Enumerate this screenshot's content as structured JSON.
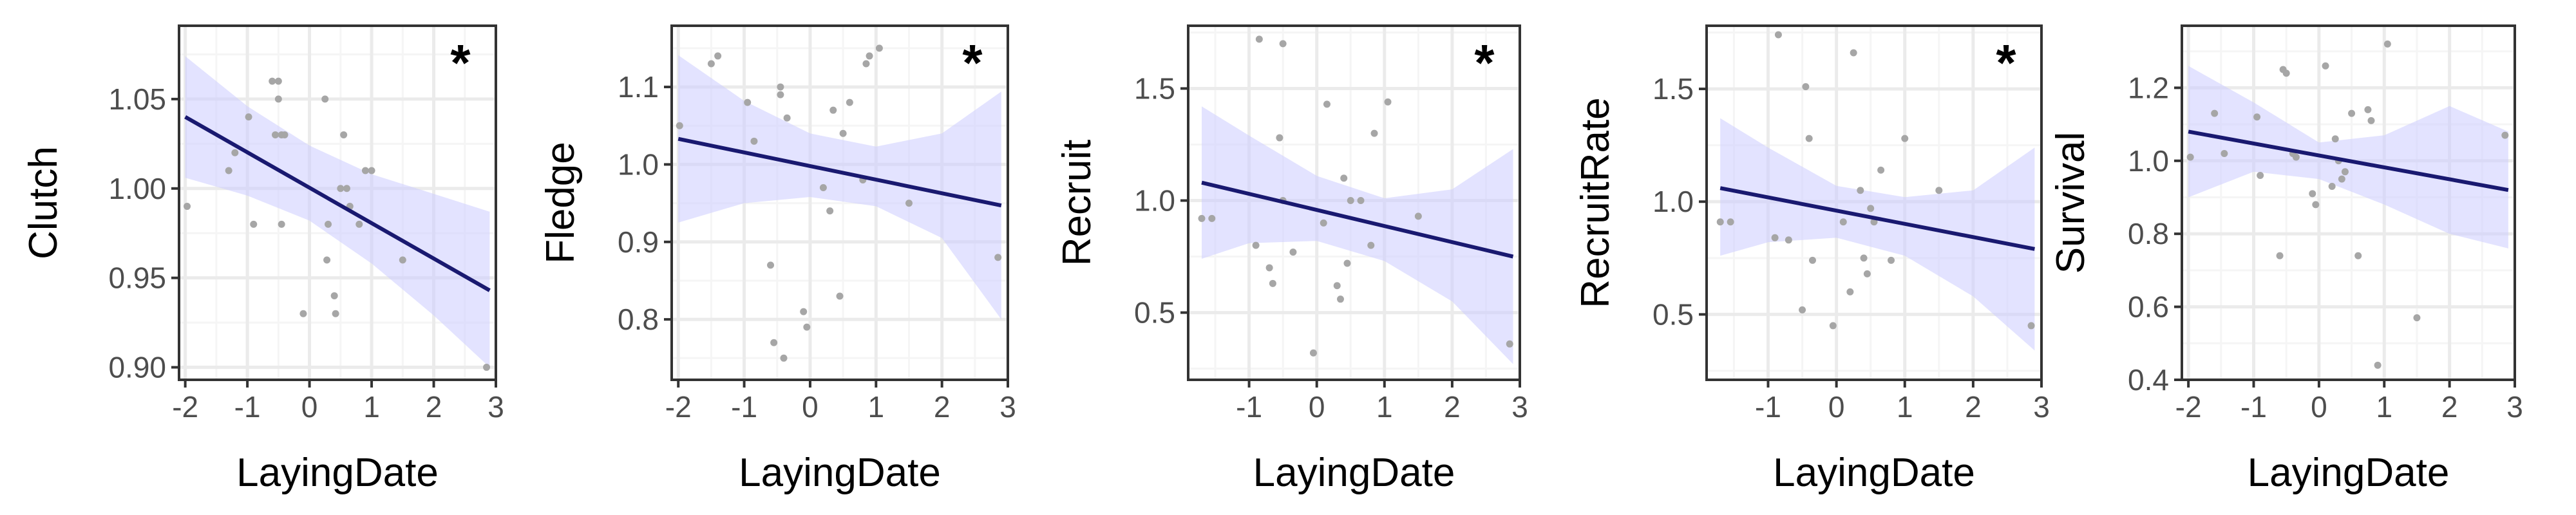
{
  "colors": {
    "line": "#191970",
    "ribbon": "#ccccff",
    "points": "#a6a6a6",
    "grid_major": "#ebebeb",
    "grid_minor": "#f5f5f5",
    "frame": "#333333"
  },
  "chart_data": [
    {
      "type": "scatter",
      "xlabel": "LayingDate",
      "ylabel": "Clutch",
      "significance": "*",
      "xlim": [
        -2.1,
        3.0
      ],
      "ylim": [
        0.893,
        1.091
      ],
      "xticks": [
        -2,
        -1,
        0,
        1,
        2,
        3
      ],
      "xtick_labels": [
        "-2",
        "-1",
        "0",
        "1",
        "2",
        "3"
      ],
      "yticks": [
        0.9,
        0.95,
        1.0,
        1.05
      ],
      "ytick_labels": [
        "0.90",
        "0.95",
        "1.00",
        "1.05"
      ],
      "points": [
        [
          -1.97,
          0.99
        ],
        [
          -1.3,
          1.01
        ],
        [
          -1.2,
          1.02
        ],
        [
          -0.98,
          1.04
        ],
        [
          -0.9,
          0.98
        ],
        [
          -0.6,
          1.06
        ],
        [
          -0.5,
          1.06
        ],
        [
          -0.5,
          1.05
        ],
        [
          -0.55,
          1.03
        ],
        [
          -0.45,
          1.03
        ],
        [
          -0.4,
          1.03
        ],
        [
          -0.45,
          0.98
        ],
        [
          -0.1,
          0.93
        ],
        [
          0.25,
          1.05
        ],
        [
          0.28,
          0.96
        ],
        [
          0.3,
          0.98
        ],
        [
          0.4,
          0.94
        ],
        [
          0.42,
          0.93
        ],
        [
          0.5,
          1.0
        ],
        [
          0.55,
          1.03
        ],
        [
          0.6,
          1.0
        ],
        [
          0.65,
          0.99
        ],
        [
          0.8,
          0.98
        ],
        [
          0.9,
          1.01
        ],
        [
          1.0,
          1.01
        ],
        [
          1.5,
          0.96
        ],
        [
          2.85,
          0.9
        ]
      ],
      "fit": {
        "x": [
          -2.0,
          2.9
        ],
        "y": [
          1.04,
          0.943
        ]
      },
      "ribbon": {
        "x": [
          -2.0,
          -1.0,
          0.0,
          1.0,
          2.0,
          2.9
        ],
        "lower": [
          1.006,
          0.996,
          0.982,
          0.958,
          0.929,
          0.9
        ],
        "upper": [
          1.074,
          1.046,
          1.024,
          1.008,
          0.997,
          0.987
        ]
      }
    },
    {
      "type": "scatter",
      "xlabel": "LayingDate",
      "ylabel": "Fledge",
      "significance": "*",
      "xlim": [
        -2.1,
        3.0
      ],
      "ylim": [
        0.722,
        1.179
      ],
      "xticks": [
        -2,
        -1,
        0,
        1,
        2,
        3
      ],
      "xtick_labels": [
        "-2",
        "-1",
        "0",
        "1",
        "2",
        "3"
      ],
      "yticks": [
        0.8,
        0.9,
        1.0,
        1.1
      ],
      "ytick_labels": [
        "0.8",
        "0.9",
        "1.0",
        "1.1"
      ],
      "points": [
        [
          -1.98,
          1.05
        ],
        [
          -1.5,
          1.13
        ],
        [
          -1.4,
          1.14
        ],
        [
          -0.95,
          1.08
        ],
        [
          -0.85,
          1.03
        ],
        [
          -0.6,
          0.87
        ],
        [
          -0.55,
          0.77
        ],
        [
          -0.45,
          1.09
        ],
        [
          -0.45,
          1.1
        ],
        [
          -0.4,
          0.75
        ],
        [
          -0.35,
          1.06
        ],
        [
          -0.1,
          0.81
        ],
        [
          -0.05,
          0.79
        ],
        [
          0.2,
          0.97
        ],
        [
          0.3,
          0.94
        ],
        [
          0.35,
          1.07
        ],
        [
          0.45,
          0.83
        ],
        [
          0.5,
          1.04
        ],
        [
          0.6,
          1.08
        ],
        [
          0.8,
          0.98
        ],
        [
          0.85,
          1.13
        ],
        [
          0.9,
          1.14
        ],
        [
          1.05,
          1.15
        ],
        [
          1.5,
          0.95
        ],
        [
          2.85,
          0.88
        ]
      ],
      "fit": {
        "x": [
          -2.0,
          2.9
        ],
        "y": [
          1.033,
          0.947
        ]
      },
      "ribbon": {
        "x": [
          -2.0,
          -1.0,
          0.0,
          1.0,
          2.0,
          2.9
        ],
        "lower": [
          0.925,
          0.95,
          0.958,
          0.946,
          0.905,
          0.8
        ],
        "upper": [
          1.141,
          1.082,
          1.04,
          1.023,
          1.04,
          1.094
        ]
      }
    },
    {
      "type": "scatter",
      "xlabel": "LayingDate",
      "ylabel": "Recruit",
      "significance": "*",
      "xlim": [
        -1.9,
        3.0
      ],
      "ylim": [
        0.2,
        1.78
      ],
      "xticks": [
        -1,
        0,
        1,
        2,
        3
      ],
      "xtick_labels": [
        "-1",
        "0",
        "1",
        "2",
        "3"
      ],
      "yticks": [
        0.5,
        1.0,
        1.5
      ],
      "ytick_labels": [
        "0.5",
        "1.0",
        "1.5"
      ],
      "points": [
        [
          -1.7,
          0.92
        ],
        [
          -1.55,
          0.92
        ],
        [
          -0.85,
          1.72
        ],
        [
          -0.9,
          0.8
        ],
        [
          -0.7,
          0.7
        ],
        [
          -0.65,
          0.63
        ],
        [
          -0.5,
          1.7
        ],
        [
          -0.55,
          1.28
        ],
        [
          -0.5,
          1.0
        ],
        [
          -0.35,
          0.77
        ],
        [
          -0.05,
          0.32
        ],
        [
          0.1,
          0.9
        ],
        [
          0.15,
          1.43
        ],
        [
          0.3,
          0.62
        ],
        [
          0.35,
          0.56
        ],
        [
          0.4,
          1.1
        ],
        [
          0.45,
          0.72
        ],
        [
          0.5,
          1.0
        ],
        [
          0.65,
          1.0
        ],
        [
          0.8,
          0.8
        ],
        [
          0.85,
          1.3
        ],
        [
          1.05,
          1.44
        ],
        [
          1.5,
          0.93
        ],
        [
          2.85,
          0.36
        ]
      ],
      "fit": {
        "x": [
          -1.7,
          2.9
        ],
        "y": [
          1.08,
          0.75
        ]
      },
      "ribbon": {
        "x": [
          -1.7,
          -1.0,
          0.0,
          1.0,
          2.0,
          2.9
        ],
        "lower": [
          0.74,
          0.81,
          0.82,
          0.73,
          0.55,
          0.27
        ],
        "upper": [
          1.42,
          1.29,
          1.11,
          1.01,
          1.05,
          1.23
        ]
      }
    },
    {
      "type": "scatter",
      "xlabel": "LayingDate",
      "ylabel": "RecruitRate",
      "significance": "*",
      "xlim": [
        -1.9,
        3.0
      ],
      "ylim": [
        0.21,
        1.78
      ],
      "xticks": [
        -1,
        0,
        1,
        2,
        3
      ],
      "xtick_labels": [
        "-1",
        "0",
        "1",
        "2",
        "3"
      ],
      "yticks": [
        0.5,
        1.0,
        1.5
      ],
      "ytick_labels": [
        "0.5",
        "1.0",
        "1.5"
      ],
      "points": [
        [
          -1.7,
          0.91
        ],
        [
          -1.55,
          0.91
        ],
        [
          -0.85,
          1.74
        ],
        [
          -0.9,
          0.84
        ],
        [
          -0.7,
          0.83
        ],
        [
          -0.5,
          0.52
        ],
        [
          -0.45,
          1.51
        ],
        [
          -0.4,
          1.28
        ],
        [
          -0.35,
          0.74
        ],
        [
          -0.05,
          0.45
        ],
        [
          0.1,
          0.91
        ],
        [
          0.2,
          0.6
        ],
        [
          0.25,
          1.66
        ],
        [
          0.35,
          1.05
        ],
        [
          0.4,
          0.75
        ],
        [
          0.45,
          0.68
        ],
        [
          0.5,
          0.97
        ],
        [
          0.55,
          0.91
        ],
        [
          0.65,
          1.14
        ],
        [
          0.8,
          0.74
        ],
        [
          1.0,
          1.28
        ],
        [
          1.5,
          1.05
        ],
        [
          2.85,
          0.45
        ]
      ],
      "fit": {
        "x": [
          -1.7,
          2.9
        ],
        "y": [
          1.06,
          0.79
        ]
      },
      "ribbon": {
        "x": [
          -1.7,
          -1.0,
          0.0,
          1.0,
          2.0,
          2.9
        ],
        "lower": [
          0.76,
          0.82,
          0.84,
          0.76,
          0.58,
          0.34
        ],
        "upper": [
          1.37,
          1.24,
          1.07,
          1.02,
          1.05,
          1.24
        ]
      }
    },
    {
      "type": "scatter",
      "xlabel": "LayingDate",
      "ylabel": "Survival",
      "significance": "",
      "xlim": [
        -2.1,
        3.0
      ],
      "ylim": [
        0.4,
        1.37
      ],
      "xticks": [
        -2,
        -1,
        0,
        1,
        2,
        3
      ],
      "xtick_labels": [
        "-2",
        "-1",
        "0",
        "1",
        "2",
        "3"
      ],
      "yticks": [
        0.4,
        0.6,
        0.8,
        1.0,
        1.2
      ],
      "ytick_labels": [
        "0.4",
        "0.6",
        "0.8",
        "1.0",
        "1.2"
      ],
      "points": [
        [
          -1.97,
          1.01
        ],
        [
          -1.6,
          1.13
        ],
        [
          -1.45,
          1.02
        ],
        [
          -0.95,
          1.12
        ],
        [
          -0.9,
          0.96
        ],
        [
          -0.6,
          0.74
        ],
        [
          -0.55,
          1.25
        ],
        [
          -0.5,
          1.24
        ],
        [
          -0.4,
          1.02
        ],
        [
          -0.35,
          1.01
        ],
        [
          -0.1,
          0.91
        ],
        [
          -0.05,
          0.88
        ],
        [
          0.1,
          1.26
        ],
        [
          0.2,
          0.93
        ],
        [
          0.25,
          1.06
        ],
        [
          0.3,
          1.0
        ],
        [
          0.35,
          0.95
        ],
        [
          0.4,
          0.97
        ],
        [
          0.5,
          1.13
        ],
        [
          0.6,
          0.74
        ],
        [
          0.75,
          1.14
        ],
        [
          0.8,
          1.11
        ],
        [
          0.9,
          0.44
        ],
        [
          1.05,
          1.32
        ],
        [
          1.5,
          0.57
        ],
        [
          2.85,
          1.07
        ]
      ],
      "fit": {
        "x": [
          -2.0,
          2.9
        ],
        "y": [
          1.08,
          0.92
        ]
      },
      "ribbon": {
        "x": [
          -2.0,
          -1.0,
          0.0,
          1.0,
          2.0,
          2.9
        ],
        "lower": [
          0.9,
          0.97,
          0.95,
          0.88,
          0.8,
          0.76
        ],
        "upper": [
          1.26,
          1.16,
          1.05,
          1.07,
          1.15,
          1.08
        ]
      }
    }
  ]
}
